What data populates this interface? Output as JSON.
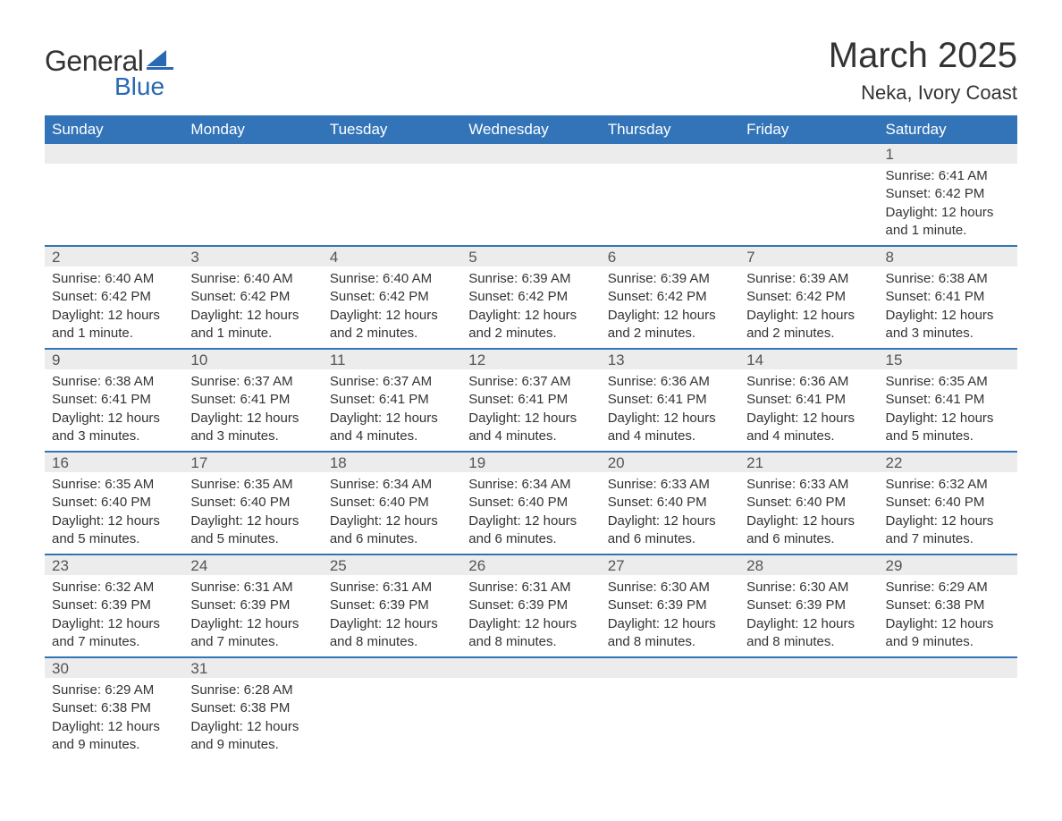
{
  "logo": {
    "text_general": "General",
    "text_blue": "Blue",
    "icon_color": "#2968b2"
  },
  "header": {
    "month_title": "March 2025",
    "location": "Neka, Ivory Coast"
  },
  "colors": {
    "header_bg": "#3374b9",
    "header_text": "#ffffff",
    "daynum_bg": "#ececec",
    "row_border": "#3374b9",
    "body_text": "#333333",
    "logo_blue": "#2968b2"
  },
  "typography": {
    "month_title_fontsize": 40,
    "location_fontsize": 22,
    "weekday_fontsize": 17,
    "daynum_fontsize": 17,
    "detail_fontsize": 15
  },
  "calendar": {
    "type": "table",
    "weekdays": [
      "Sunday",
      "Monday",
      "Tuesday",
      "Wednesday",
      "Thursday",
      "Friday",
      "Saturday"
    ],
    "weeks": [
      [
        null,
        null,
        null,
        null,
        null,
        null,
        {
          "day": "1",
          "sunrise": "Sunrise: 6:41 AM",
          "sunset": "Sunset: 6:42 PM",
          "daylight1": "Daylight: 12 hours",
          "daylight2": "and 1 minute."
        }
      ],
      [
        {
          "day": "2",
          "sunrise": "Sunrise: 6:40 AM",
          "sunset": "Sunset: 6:42 PM",
          "daylight1": "Daylight: 12 hours",
          "daylight2": "and 1 minute."
        },
        {
          "day": "3",
          "sunrise": "Sunrise: 6:40 AM",
          "sunset": "Sunset: 6:42 PM",
          "daylight1": "Daylight: 12 hours",
          "daylight2": "and 1 minute."
        },
        {
          "day": "4",
          "sunrise": "Sunrise: 6:40 AM",
          "sunset": "Sunset: 6:42 PM",
          "daylight1": "Daylight: 12 hours",
          "daylight2": "and 2 minutes."
        },
        {
          "day": "5",
          "sunrise": "Sunrise: 6:39 AM",
          "sunset": "Sunset: 6:42 PM",
          "daylight1": "Daylight: 12 hours",
          "daylight2": "and 2 minutes."
        },
        {
          "day": "6",
          "sunrise": "Sunrise: 6:39 AM",
          "sunset": "Sunset: 6:42 PM",
          "daylight1": "Daylight: 12 hours",
          "daylight2": "and 2 minutes."
        },
        {
          "day": "7",
          "sunrise": "Sunrise: 6:39 AM",
          "sunset": "Sunset: 6:42 PM",
          "daylight1": "Daylight: 12 hours",
          "daylight2": "and 2 minutes."
        },
        {
          "day": "8",
          "sunrise": "Sunrise: 6:38 AM",
          "sunset": "Sunset: 6:41 PM",
          "daylight1": "Daylight: 12 hours",
          "daylight2": "and 3 minutes."
        }
      ],
      [
        {
          "day": "9",
          "sunrise": "Sunrise: 6:38 AM",
          "sunset": "Sunset: 6:41 PM",
          "daylight1": "Daylight: 12 hours",
          "daylight2": "and 3 minutes."
        },
        {
          "day": "10",
          "sunrise": "Sunrise: 6:37 AM",
          "sunset": "Sunset: 6:41 PM",
          "daylight1": "Daylight: 12 hours",
          "daylight2": "and 3 minutes."
        },
        {
          "day": "11",
          "sunrise": "Sunrise: 6:37 AM",
          "sunset": "Sunset: 6:41 PM",
          "daylight1": "Daylight: 12 hours",
          "daylight2": "and 4 minutes."
        },
        {
          "day": "12",
          "sunrise": "Sunrise: 6:37 AM",
          "sunset": "Sunset: 6:41 PM",
          "daylight1": "Daylight: 12 hours",
          "daylight2": "and 4 minutes."
        },
        {
          "day": "13",
          "sunrise": "Sunrise: 6:36 AM",
          "sunset": "Sunset: 6:41 PM",
          "daylight1": "Daylight: 12 hours",
          "daylight2": "and 4 minutes."
        },
        {
          "day": "14",
          "sunrise": "Sunrise: 6:36 AM",
          "sunset": "Sunset: 6:41 PM",
          "daylight1": "Daylight: 12 hours",
          "daylight2": "and 4 minutes."
        },
        {
          "day": "15",
          "sunrise": "Sunrise: 6:35 AM",
          "sunset": "Sunset: 6:41 PM",
          "daylight1": "Daylight: 12 hours",
          "daylight2": "and 5 minutes."
        }
      ],
      [
        {
          "day": "16",
          "sunrise": "Sunrise: 6:35 AM",
          "sunset": "Sunset: 6:40 PM",
          "daylight1": "Daylight: 12 hours",
          "daylight2": "and 5 minutes."
        },
        {
          "day": "17",
          "sunrise": "Sunrise: 6:35 AM",
          "sunset": "Sunset: 6:40 PM",
          "daylight1": "Daylight: 12 hours",
          "daylight2": "and 5 minutes."
        },
        {
          "day": "18",
          "sunrise": "Sunrise: 6:34 AM",
          "sunset": "Sunset: 6:40 PM",
          "daylight1": "Daylight: 12 hours",
          "daylight2": "and 6 minutes."
        },
        {
          "day": "19",
          "sunrise": "Sunrise: 6:34 AM",
          "sunset": "Sunset: 6:40 PM",
          "daylight1": "Daylight: 12 hours",
          "daylight2": "and 6 minutes."
        },
        {
          "day": "20",
          "sunrise": "Sunrise: 6:33 AM",
          "sunset": "Sunset: 6:40 PM",
          "daylight1": "Daylight: 12 hours",
          "daylight2": "and 6 minutes."
        },
        {
          "day": "21",
          "sunrise": "Sunrise: 6:33 AM",
          "sunset": "Sunset: 6:40 PM",
          "daylight1": "Daylight: 12 hours",
          "daylight2": "and 6 minutes."
        },
        {
          "day": "22",
          "sunrise": "Sunrise: 6:32 AM",
          "sunset": "Sunset: 6:40 PM",
          "daylight1": "Daylight: 12 hours",
          "daylight2": "and 7 minutes."
        }
      ],
      [
        {
          "day": "23",
          "sunrise": "Sunrise: 6:32 AM",
          "sunset": "Sunset: 6:39 PM",
          "daylight1": "Daylight: 12 hours",
          "daylight2": "and 7 minutes."
        },
        {
          "day": "24",
          "sunrise": "Sunrise: 6:31 AM",
          "sunset": "Sunset: 6:39 PM",
          "daylight1": "Daylight: 12 hours",
          "daylight2": "and 7 minutes."
        },
        {
          "day": "25",
          "sunrise": "Sunrise: 6:31 AM",
          "sunset": "Sunset: 6:39 PM",
          "daylight1": "Daylight: 12 hours",
          "daylight2": "and 8 minutes."
        },
        {
          "day": "26",
          "sunrise": "Sunrise: 6:31 AM",
          "sunset": "Sunset: 6:39 PM",
          "daylight1": "Daylight: 12 hours",
          "daylight2": "and 8 minutes."
        },
        {
          "day": "27",
          "sunrise": "Sunrise: 6:30 AM",
          "sunset": "Sunset: 6:39 PM",
          "daylight1": "Daylight: 12 hours",
          "daylight2": "and 8 minutes."
        },
        {
          "day": "28",
          "sunrise": "Sunrise: 6:30 AM",
          "sunset": "Sunset: 6:39 PM",
          "daylight1": "Daylight: 12 hours",
          "daylight2": "and 8 minutes."
        },
        {
          "day": "29",
          "sunrise": "Sunrise: 6:29 AM",
          "sunset": "Sunset: 6:38 PM",
          "daylight1": "Daylight: 12 hours",
          "daylight2": "and 9 minutes."
        }
      ],
      [
        {
          "day": "30",
          "sunrise": "Sunrise: 6:29 AM",
          "sunset": "Sunset: 6:38 PM",
          "daylight1": "Daylight: 12 hours",
          "daylight2": "and 9 minutes."
        },
        {
          "day": "31",
          "sunrise": "Sunrise: 6:28 AM",
          "sunset": "Sunset: 6:38 PM",
          "daylight1": "Daylight: 12 hours",
          "daylight2": "and 9 minutes."
        },
        null,
        null,
        null,
        null,
        null
      ]
    ]
  }
}
